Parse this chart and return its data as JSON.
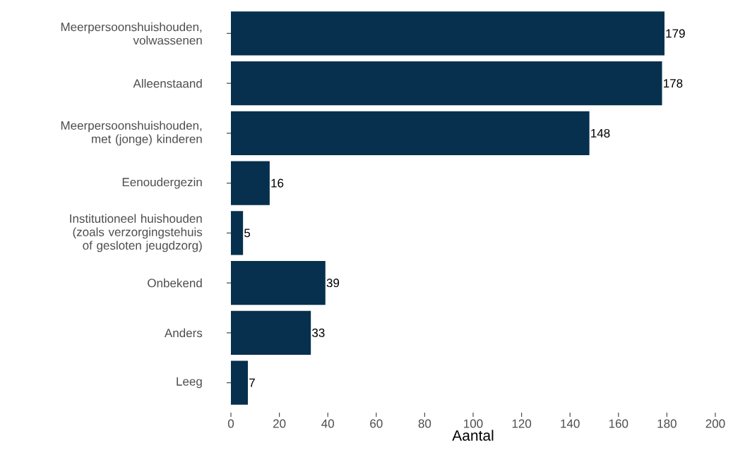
{
  "chart_data": {
    "type": "bar",
    "orientation": "horizontal",
    "xlabel": "Aantal",
    "categories": [
      "Meerpersoonshuishouden, volwassenen",
      "Alleenstaand",
      "Meerpersoonshuishouden, met (jonge) kinderen",
      "Eenoudergezin",
      "Institutioneel huishouden (zoals verzorgingstehuis of gesloten jeugdzorg)",
      "Onbekend",
      "Anders",
      "Leeg"
    ],
    "values": [
      179,
      178,
      148,
      16,
      5,
      39,
      33,
      7
    ],
    "color": "#06304d",
    "data_labels": true,
    "xlim": [
      0,
      200
    ],
    "xticks": [
      0,
      20,
      40,
      60,
      80,
      100,
      120,
      140,
      160,
      180,
      200
    ]
  }
}
